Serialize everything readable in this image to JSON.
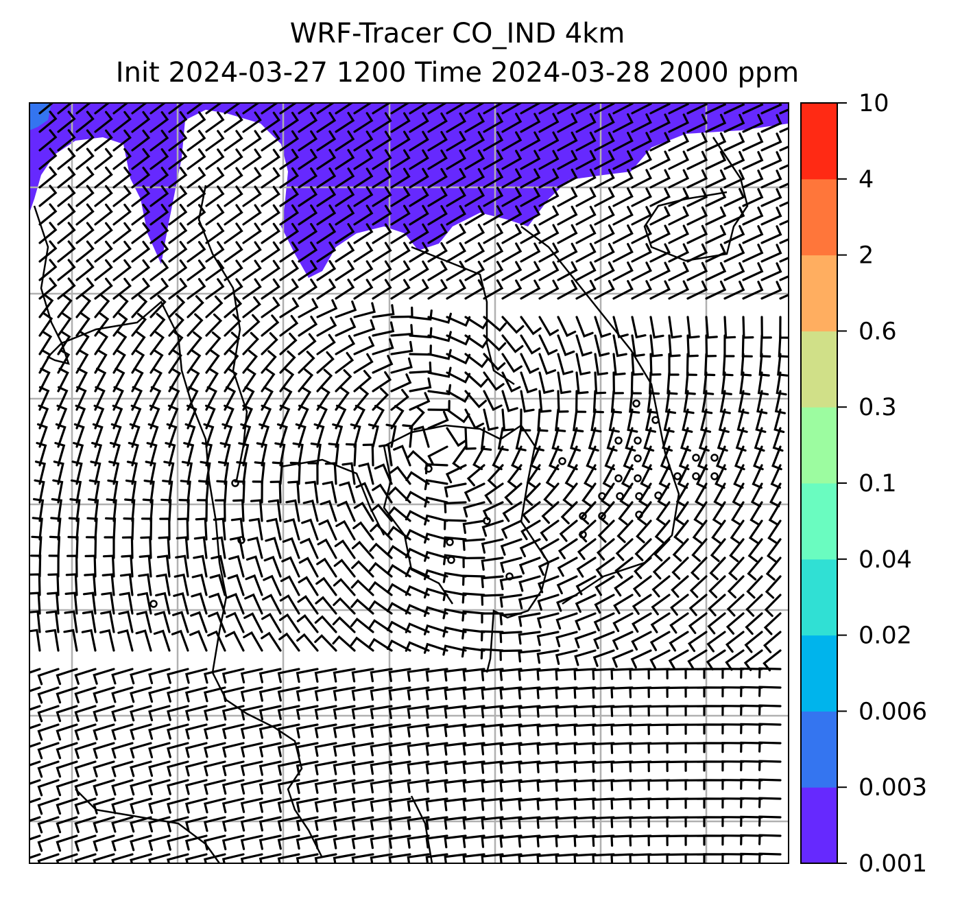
{
  "title": {
    "line1": "WRF-Tracer CO_IND 4km",
    "line2": "Init 2024-03-27 1200 Time 2024-03-28 2000 ppm"
  },
  "colorbar": {
    "levels": [
      "0.001",
      "0.003",
      "0.006",
      "0.02",
      "0.04",
      "0.1",
      "0.3",
      "0.6",
      "2",
      "4",
      "10"
    ],
    "colors": [
      "#6629fe",
      "#3475f0",
      "#00b4ec",
      "#30e0d4",
      "#6afcc0",
      "#9cfca0",
      "#d0e088",
      "#ffae60",
      "#ff763a",
      "#ff2a14"
    ]
  },
  "map": {
    "field_color": "#6629fe",
    "secondary_color": "#3475f0",
    "grid_color": "#b0b0b0"
  }
}
